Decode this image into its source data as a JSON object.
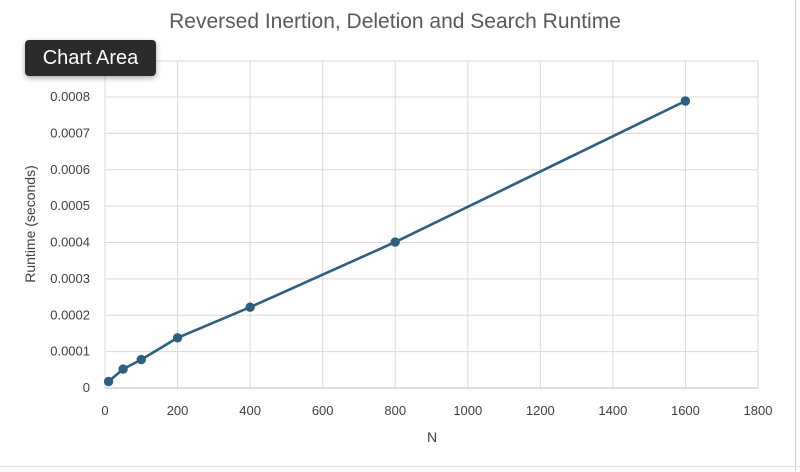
{
  "tooltip": {
    "label": "Chart Area"
  },
  "chart_data": {
    "type": "line",
    "title": "Reversed Inertion, Deletion and Search Runtime",
    "xlabel": "N",
    "ylabel": "Runtime (seconds)",
    "xlim": [
      0,
      1800
    ],
    "ylim": [
      0,
      0.0008
    ],
    "x_ticks": [
      0,
      200,
      400,
      600,
      800,
      1000,
      1200,
      1400,
      1600,
      1800
    ],
    "x_tick_labels": [
      "0",
      "200",
      "400",
      "600",
      "800",
      "1000",
      "1200",
      "1400",
      "1600",
      "1800"
    ],
    "y_ticks": [
      0,
      0.0001,
      0.0002,
      0.0003,
      0.0004,
      0.0005,
      0.0006,
      0.0007,
      0.0008
    ],
    "y_tick_labels": [
      "0",
      "0.0001",
      "0.0002",
      "0.0003",
      "0.0004",
      "0.0005",
      "0.0006",
      "0.0007",
      "0.0008"
    ],
    "grid": true,
    "series": [
      {
        "color": "#2e5f7f",
        "points": [
          {
            "x": 10,
            "y": 1.8e-05
          },
          {
            "x": 50,
            "y": 5.2e-05
          },
          {
            "x": 100,
            "y": 7.8e-05
          },
          {
            "x": 200,
            "y": 0.000138
          },
          {
            "x": 400,
            "y": 0.000222
          },
          {
            "x": 800,
            "y": 0.000401
          },
          {
            "x": 1600,
            "y": 0.000789
          }
        ]
      }
    ]
  }
}
